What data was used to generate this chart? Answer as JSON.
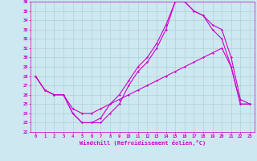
{
  "xlabel": "Windchill (Refroidissement éolien,°C)",
  "bg_color": "#cde8f0",
  "line_color": "#cc00cc",
  "grid_color": "#aacccc",
  "xmin": 0,
  "xmax": 23,
  "ymin": 22,
  "ymax": 36,
  "line1_x": [
    0,
    1,
    2,
    3,
    4,
    5,
    6,
    7,
    8,
    9,
    10,
    11,
    12,
    13,
    14,
    15,
    16,
    17,
    18,
    19,
    20,
    21,
    22,
    23
  ],
  "line1_y": [
    28,
    26.5,
    26,
    26,
    24,
    23,
    23,
    23.5,
    25,
    26,
    27.5,
    29,
    30,
    31.5,
    33.5,
    36,
    36,
    35,
    34.5,
    33.5,
    33,
    30,
    25.5,
    25
  ],
  "line2_x": [
    0,
    1,
    2,
    3,
    4,
    5,
    6,
    7,
    8,
    9,
    10,
    11,
    12,
    13,
    14,
    15,
    16,
    17,
    18,
    19,
    20,
    21,
    22,
    23
  ],
  "line2_y": [
    28,
    26.5,
    26,
    26,
    24,
    23,
    23,
    23,
    24,
    25,
    27,
    28.5,
    29.5,
    31,
    33,
    36,
    36,
    35,
    34.5,
    33,
    32,
    29,
    25,
    25
  ],
  "line3_x": [
    0,
    1,
    2,
    3,
    4,
    5,
    6,
    7,
    8,
    9,
    10,
    11,
    12,
    13,
    14,
    15,
    16,
    17,
    18,
    19,
    20,
    21,
    22,
    23
  ],
  "line3_y": [
    28,
    26.5,
    26,
    26,
    24.5,
    24,
    24,
    24.5,
    25,
    25.5,
    26,
    26.5,
    27,
    27.5,
    28,
    28.5,
    29,
    29.5,
    30,
    30.5,
    31,
    29,
    25,
    25
  ],
  "xtick_labels": [
    "0",
    "1",
    "2",
    "3",
    "4",
    "5",
    "6",
    "7",
    "8",
    "9",
    "10",
    "11",
    "12",
    "13",
    "14",
    "15",
    "16",
    "17",
    "18",
    "19",
    "20",
    "21",
    "22",
    "23"
  ]
}
